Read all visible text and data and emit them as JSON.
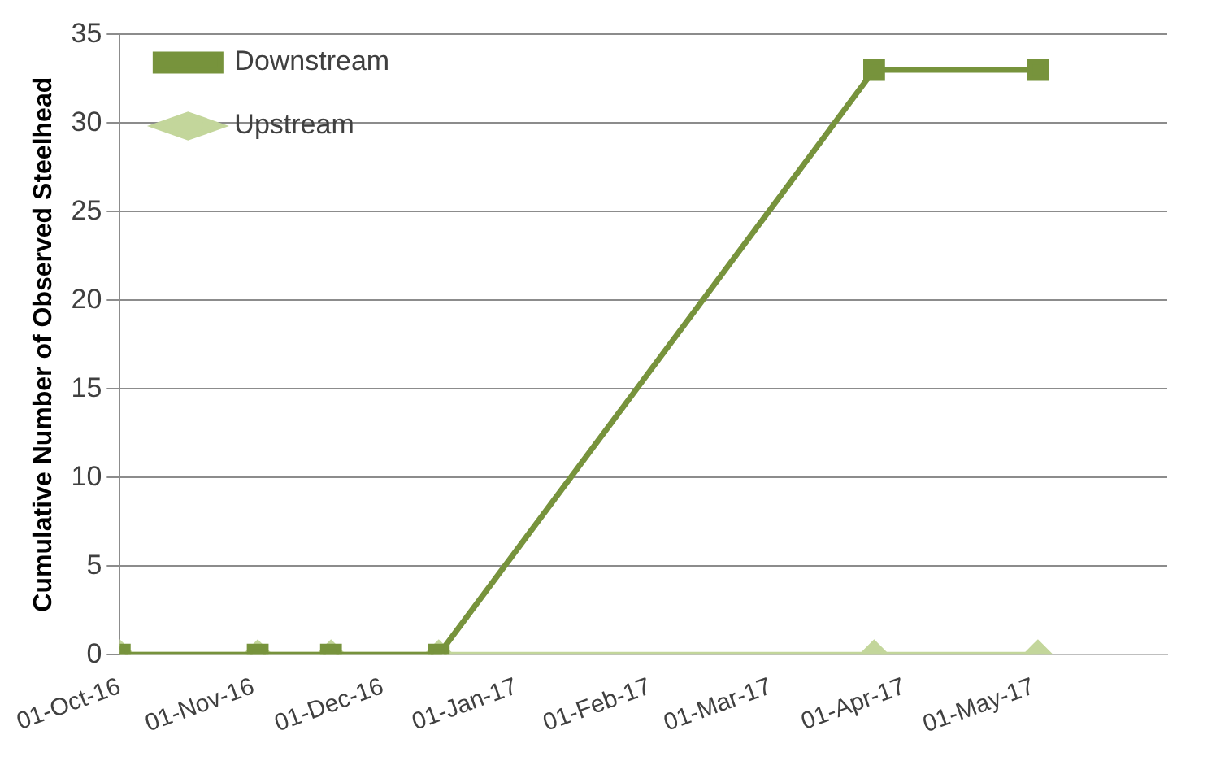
{
  "chart_data": {
    "type": "line",
    "ylabel": "Cumulative Number of Observed Steelhead",
    "x": [
      "2016-10-01",
      "2016-11-02",
      "2016-11-19",
      "2016-12-14",
      "2017-03-25",
      "2017-05-02"
    ],
    "series": [
      {
        "name": "Downstream",
        "color": "#77933c",
        "marker": "square",
        "values": [
          0,
          0,
          0,
          0,
          33,
          33
        ]
      },
      {
        "name": "Upstream",
        "color": "#c3d69b",
        "marker": "diamond",
        "values": [
          0,
          0,
          0,
          0,
          0,
          0
        ]
      }
    ],
    "xlim": [
      "2016-10-01",
      "2017-06-01"
    ],
    "xticks": [
      {
        "value": "2016-10-01",
        "label": "01-Oct-16"
      },
      {
        "value": "2016-11-01",
        "label": "01-Nov-16"
      },
      {
        "value": "2016-12-01",
        "label": "01-Dec-16"
      },
      {
        "value": "2017-01-01",
        "label": "01-Jan-17"
      },
      {
        "value": "2017-02-01",
        "label": "01-Feb-17"
      },
      {
        "value": "2017-03-01",
        "label": "01-Mar-17"
      },
      {
        "value": "2017-04-01",
        "label": "01-Apr-17"
      },
      {
        "value": "2017-05-01",
        "label": "01-May-17"
      }
    ],
    "ylim": [
      0,
      35
    ],
    "yticks": [
      0,
      5,
      10,
      15,
      20,
      25,
      30,
      35
    ],
    "grid": "y",
    "legend": "top left",
    "line_style": "solid"
  }
}
